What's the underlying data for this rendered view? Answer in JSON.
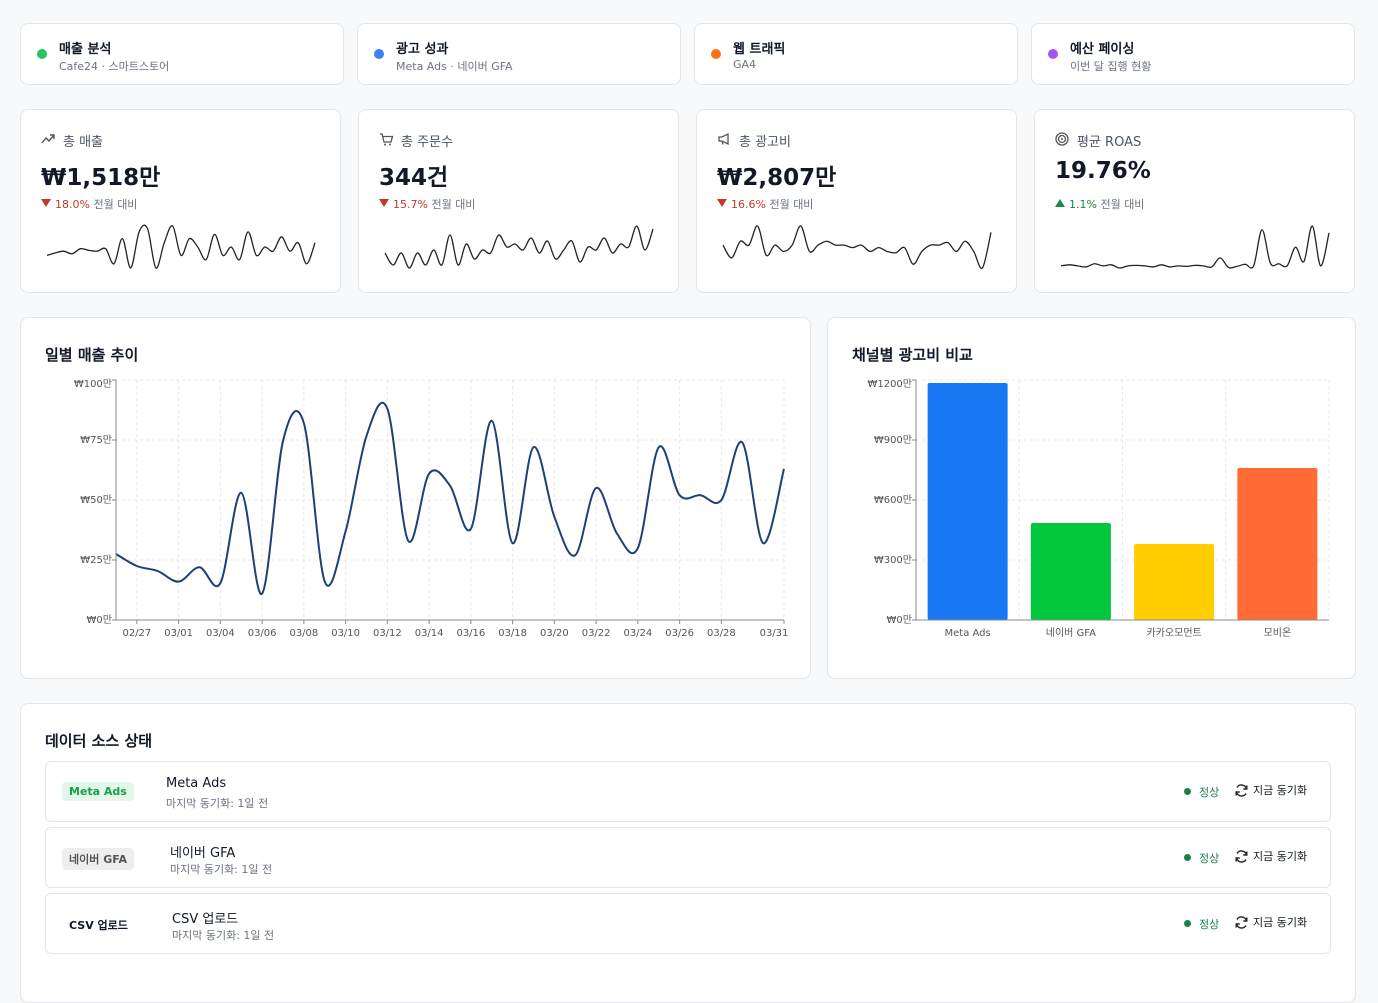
{
  "nav": [
    {
      "title": "매출 분석",
      "subtitle": "Cafe24 · 스마트스토어",
      "color": "#22c55e"
    },
    {
      "title": "광고 성과",
      "subtitle": "Meta Ads · 네이버 GFA",
      "color": "#3b82f6"
    },
    {
      "title": "웹 트래픽",
      "subtitle": "GA4",
      "color": "#f97316"
    },
    {
      "title": "예산 페이싱",
      "subtitle": "이번 달 집행 현황",
      "color": "#a855f7"
    }
  ],
  "kpis": [
    {
      "label": "총 매출",
      "value": "₩1,518만",
      "change": "18.0%",
      "trend": "down",
      "compare": "전월 대비",
      "spark": [
        5,
        5.3,
        5.5,
        5.2,
        5.8,
        5.6,
        5.5,
        5.8,
        4,
        7,
        3.5,
        7.8,
        8.2,
        3.5,
        6.5,
        8.5,
        5,
        7,
        6,
        4.5,
        7.5,
        5,
        6,
        4.5,
        7.8,
        5,
        6,
        5.5,
        7.2,
        5.5,
        6.5,
        4,
        6.5
      ]
    },
    {
      "label": "총 주문수",
      "value": "344건",
      "change": "15.7%",
      "trend": "down",
      "compare": "전월 대비",
      "spark": [
        5,
        3,
        5,
        2.5,
        5,
        3,
        5.5,
        3,
        8,
        3,
        6.5,
        4,
        5.5,
        5,
        8,
        6,
        6.5,
        5.5,
        7.5,
        5,
        7,
        4,
        5.5,
        7,
        3.5,
        6,
        5.5,
        7.5,
        5,
        6.5,
        6,
        9.5,
        5.5,
        9
      ]
    },
    {
      "label": "총 광고비",
      "value": "₩2,807만",
      "change": "16.6%",
      "trend": "down",
      "compare": "전월 대비",
      "spark": [
        6,
        5,
        6.3,
        6,
        7.5,
        5.2,
        6,
        5.5,
        6,
        7.5,
        5.5,
        6,
        6.3,
        6,
        6,
        5.8,
        6,
        5.5,
        5.8,
        5.5,
        5.4,
        5.8,
        4.5,
        5.5,
        6,
        6,
        6.2,
        5.5,
        6.3,
        5.5,
        4.2,
        7
      ]
    },
    {
      "label": "평균 ROAS",
      "value": "19.76%",
      "change": "1.1%",
      "trend": "up",
      "compare": "전월 대비",
      "spark": [
        2,
        2.2,
        2,
        1.8,
        2.4,
        2,
        2.2,
        1.6,
        2,
        2.1,
        2,
        1.8,
        2.2,
        1.8,
        2,
        1.9,
        2.1,
        2,
        1.8,
        3.5,
        1.7,
        1.9,
        2.3,
        2,
        8.8,
        2.5,
        2.4,
        2,
        5.5,
        2.8,
        9.5,
        2,
        8.2
      ]
    }
  ],
  "chart_data": [
    {
      "type": "line",
      "title": "일별 매출 추이",
      "categories": [
        null,
        "02/27",
        null,
        "03/01",
        null,
        "03/04",
        null,
        "03/06",
        null,
        "03/08",
        null,
        "03/10",
        null,
        "03/12",
        null,
        "03/14",
        null,
        "03/16",
        null,
        "03/18",
        null,
        "03/20",
        null,
        "03/22",
        null,
        "03/24",
        null,
        "03/26",
        null,
        "03/28",
        null,
        null,
        "03/31"
      ],
      "values": [
        27.5,
        22.5,
        20.4,
        16,
        22,
        15.4,
        53,
        11,
        74.6,
        82,
        16,
        37,
        76.7,
        88,
        33,
        61,
        56,
        38,
        83,
        32,
        72,
        43,
        27,
        55,
        36,
        30,
        72,
        52,
        52,
        50,
        74,
        32,
        63
      ],
      "color": "#1f3f77",
      "ylim": [
        0,
        100
      ],
      "yticks": [
        {
          "value": 0,
          "label": "₩0만"
        },
        {
          "value": 25,
          "label": "₩25만"
        },
        {
          "value": 50,
          "label": "₩50만"
        },
        {
          "value": 75,
          "label": "₩75만"
        },
        {
          "value": 100,
          "label": "₩100만"
        }
      ],
      "grid": true
    },
    {
      "type": "bar",
      "title": "채널별 광고비 비교",
      "categories": [
        "Meta Ads",
        "네이버 GFA",
        "카카오모먼트",
        "모비온"
      ],
      "values": [
        1185,
        485,
        380,
        760
      ],
      "colors": [
        "#1877f2",
        "#00c73c",
        "#ffcd00",
        "#ff6b35"
      ],
      "ylim": [
        0,
        1200
      ],
      "yticks": [
        {
          "value": 0,
          "label": "₩0만"
        },
        {
          "value": 300,
          "label": "₩300만"
        },
        {
          "value": 600,
          "label": "₩600만"
        },
        {
          "value": 900,
          "label": "₩900만"
        },
        {
          "value": 1200,
          "label": "₩1200만"
        }
      ],
      "grid": true
    }
  ],
  "sources": {
    "title": "데이터 소스 상태",
    "rows": [
      {
        "badge": "Meta Ads",
        "name": "Meta Ads",
        "synced": "마지막 동기화: 1일 전",
        "status": "정상",
        "action": "지금 동기화"
      },
      {
        "badge": "네이버 GFA",
        "name": "네이버 GFA",
        "synced": "마지막 동기화: 1일 전",
        "status": "정상",
        "action": "지금 동기화"
      },
      {
        "badge": "CSV 업로드",
        "name": "CSV 업로드",
        "synced": "마지막 동기화: 1일 전",
        "status": "정상",
        "action": "지금 동기화"
      }
    ]
  }
}
